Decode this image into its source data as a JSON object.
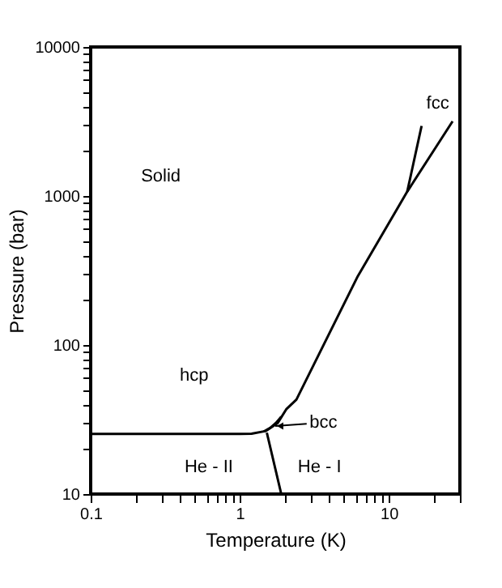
{
  "chart_data": {
    "type": "line",
    "xlabel": "Temperature (K)",
    "ylabel": "Pressure (bar)",
    "log": "xy",
    "grid": false,
    "marker": "none",
    "line_style": "solid",
    "xlim": [
      0.1,
      30
    ],
    "ylim": [
      10,
      10000
    ],
    "xticks": [
      0.1,
      {
        "value": 0.2,
        "label": null
      },
      {
        "value": 0.3,
        "label": null
      },
      {
        "value": 0.4,
        "label": null
      },
      {
        "value": 0.5,
        "label": null
      },
      {
        "value": 0.6,
        "label": null
      },
      {
        "value": 0.7,
        "label": null
      },
      {
        "value": 0.8,
        "label": null
      },
      {
        "value": 0.9,
        "label": null
      },
      1,
      {
        "value": 2,
        "label": null
      },
      {
        "value": 3,
        "label": null
      },
      {
        "value": 4,
        "label": null
      },
      {
        "value": 5,
        "label": null
      },
      {
        "value": 6,
        "label": null
      },
      {
        "value": 7,
        "label": null
      },
      {
        "value": 8,
        "label": null
      },
      {
        "value": 9,
        "label": null
      },
      10,
      {
        "value": 20,
        "label": null
      },
      {
        "value": 30,
        "label": null
      }
    ],
    "yticks": [
      10,
      {
        "value": 20,
        "label": null
      },
      {
        "value": 30,
        "label": null
      },
      {
        "value": 40,
        "label": null
      },
      {
        "value": 50,
        "label": null
      },
      {
        "value": 60,
        "label": null
      },
      {
        "value": 70,
        "label": null
      },
      {
        "value": 80,
        "label": null
      },
      {
        "value": 90,
        "label": null
      },
      100,
      {
        "value": 200,
        "label": null
      },
      {
        "value": 300,
        "label": null
      },
      {
        "value": 400,
        "label": null
      },
      {
        "value": 500,
        "label": null
      },
      {
        "value": 600,
        "label": null
      },
      {
        "value": 700,
        "label": null
      },
      {
        "value": 800,
        "label": null
      },
      {
        "value": 900,
        "label": null
      },
      1000,
      {
        "value": 2000,
        "label": null
      },
      {
        "value": 3000,
        "label": null
      },
      {
        "value": 4000,
        "label": null
      },
      {
        "value": 5000,
        "label": null
      },
      {
        "value": 6000,
        "label": null
      },
      {
        "value": 7000,
        "label": null
      },
      {
        "value": 8000,
        "label": null
      },
      {
        "value": 9000,
        "label": null
      },
      10000
    ],
    "series": [
      {
        "color": "#000000",
        "x": [
          0.1,
          1,
          1.2,
          1.5,
          1.8,
          2.05,
          2.4,
          6.2,
          13.3,
          26.8
        ],
        "values": [
          25.3,
          25.3,
          25.4,
          26.5,
          30,
          37,
          43,
          290,
          1070,
          3170
        ]
      },
      {
        "color": "#000000",
        "x": [
          1.45,
          1.6,
          1.75,
          1.9
        ],
        "values": [
          26.3,
          27.8,
          30,
          33
        ]
      },
      {
        "color": "#000000",
        "x": [
          13.3,
          16.6
        ],
        "values": [
          1070,
          2950
        ]
      },
      {
        "color": "#000000",
        "x": [
          1.52,
          1.9
        ],
        "values": [
          25.8,
          10
        ]
      }
    ],
    "annotations": [
      "Solid",
      "hcp",
      "He - II",
      "He - I",
      "fcc",
      "bcc"
    ]
  }
}
